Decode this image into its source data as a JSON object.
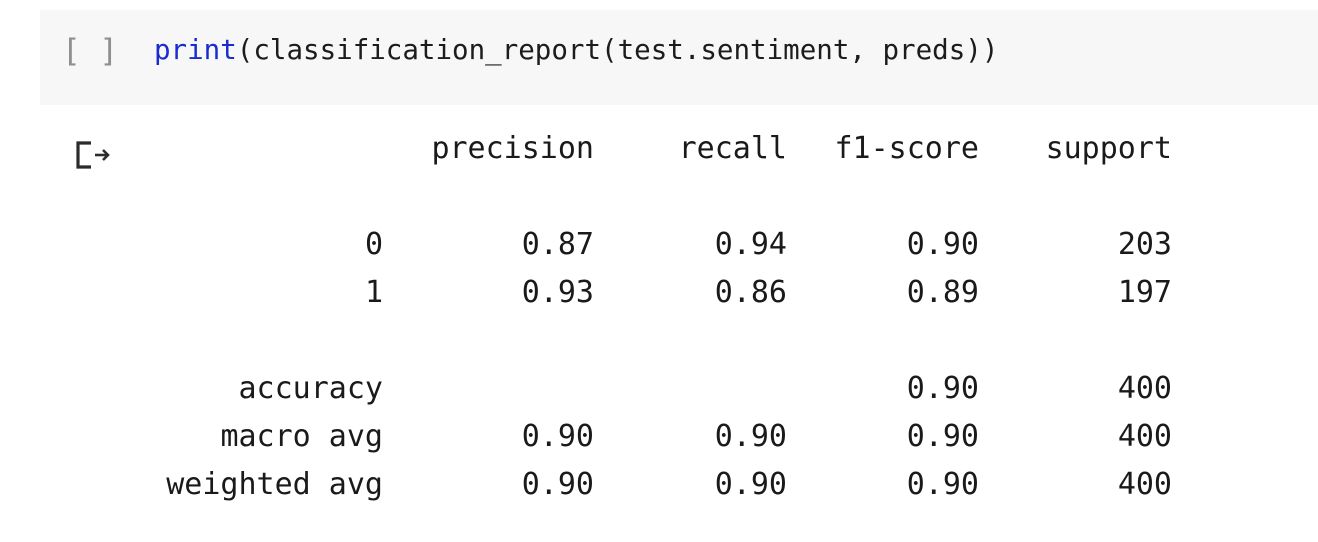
{
  "cell": {
    "run_indicator": "[ ]",
    "code_fn": "print",
    "code_args": "(classification_report(test.sentiment, preds))"
  },
  "output": {
    "icon": "output-redirect-icon",
    "headers": [
      "precision",
      "recall",
      "f1-score",
      "support"
    ],
    "rows": [
      {
        "label": "0",
        "precision": "0.87",
        "recall": "0.94",
        "f1": "0.90",
        "support": "203"
      },
      {
        "label": "1",
        "precision": "0.93",
        "recall": "0.86",
        "f1": "0.89",
        "support": "197"
      },
      {
        "label": "accuracy",
        "precision": "",
        "recall": "",
        "f1": "0.90",
        "support": "400"
      },
      {
        "label": "macro avg",
        "precision": "0.90",
        "recall": "0.90",
        "f1": "0.90",
        "support": "400"
      },
      {
        "label": "weighted avg",
        "precision": "0.90",
        "recall": "0.90",
        "f1": "0.90",
        "support": "400"
      }
    ]
  }
}
